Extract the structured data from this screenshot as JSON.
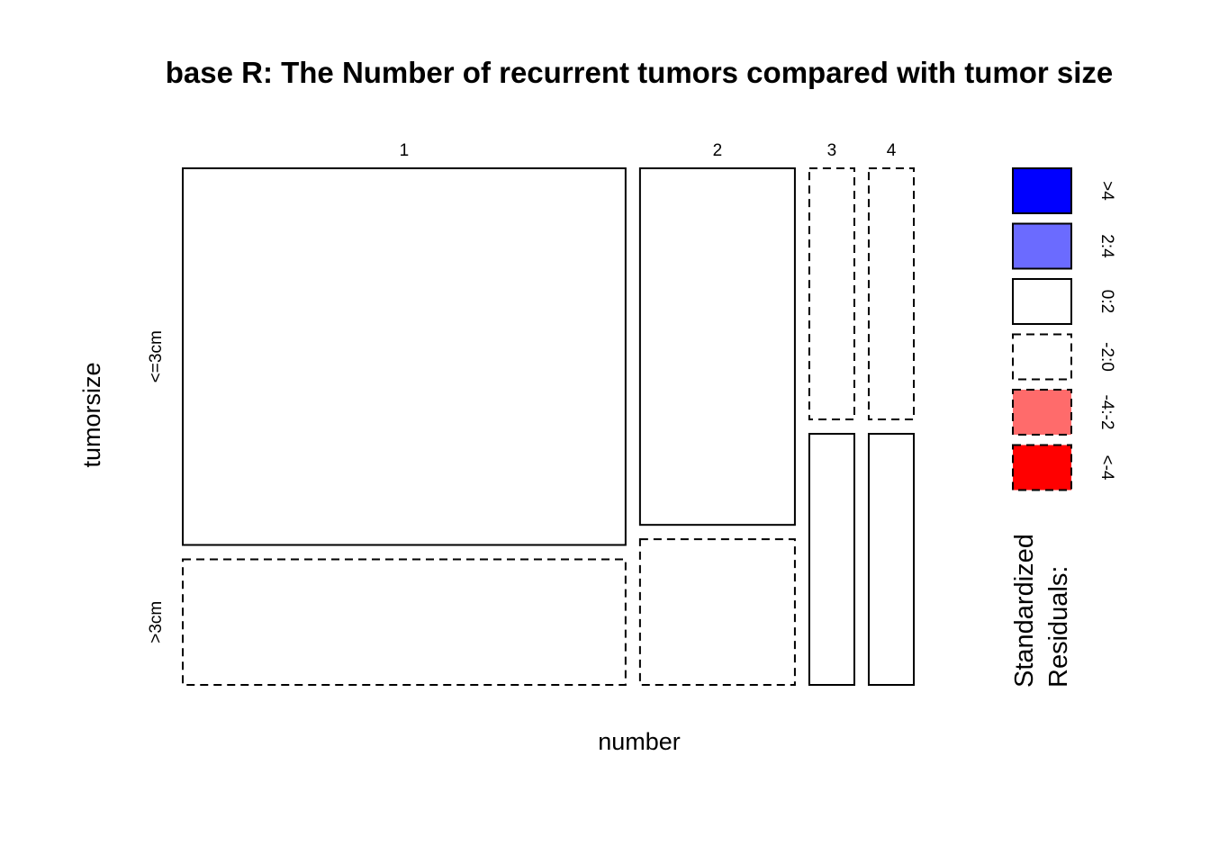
{
  "chart_data": {
    "type": "mosaic",
    "title": "base R: The Number of recurrent tumors compared with tumor size",
    "xlabel": "number",
    "ylabel": "tumorsize",
    "x_categories": [
      "1",
      "2",
      "3",
      "4"
    ],
    "y_categories": [
      "<=3cm",
      ">3cm"
    ],
    "cells": [
      {
        "x": "1",
        "y": "<=3cm",
        "proportion_of_column": 0.75,
        "residual_class": "0:2"
      },
      {
        "x": "1",
        "y": ">3cm",
        "proportion_of_column": 0.25,
        "residual_class": "-2:0"
      },
      {
        "x": "2",
        "y": "<=3cm",
        "proportion_of_column": 0.71,
        "residual_class": "0:2"
      },
      {
        "x": "2",
        "y": ">3cm",
        "proportion_of_column": 0.29,
        "residual_class": "-2:0"
      },
      {
        "x": "3",
        "y": "<=3cm",
        "proportion_of_column": 0.5,
        "residual_class": "-2:0"
      },
      {
        "x": "3",
        "y": ">3cm",
        "proportion_of_column": 0.5,
        "residual_class": "0:2"
      },
      {
        "x": "4",
        "y": "<=3cm",
        "proportion_of_column": 0.5,
        "residual_class": "-2:0"
      },
      {
        "x": "4",
        "y": ">3cm",
        "proportion_of_column": 0.5,
        "residual_class": "0:2"
      }
    ],
    "column_proportions": [
      0.629,
      0.22,
      0.064,
      0.064
    ],
    "legend": {
      "title_lines": [
        "Standardized",
        "Residuals:"
      ],
      "entries": [
        {
          "label": ">4",
          "color": "#0000ff",
          "dashed": false
        },
        {
          "label": "2:4",
          "color": "#6b6bff",
          "dashed": false
        },
        {
          "label": "0:2",
          "color": "#ffffff",
          "dashed": false
        },
        {
          "label": "-2:0",
          "color": "#ffffff",
          "dashed": true
        },
        {
          "label": "-4:-2",
          "color": "#ff6b6b",
          "dashed": true
        },
        {
          "label": "<-4",
          "color": "#ff0000",
          "dashed": true
        }
      ]
    }
  }
}
